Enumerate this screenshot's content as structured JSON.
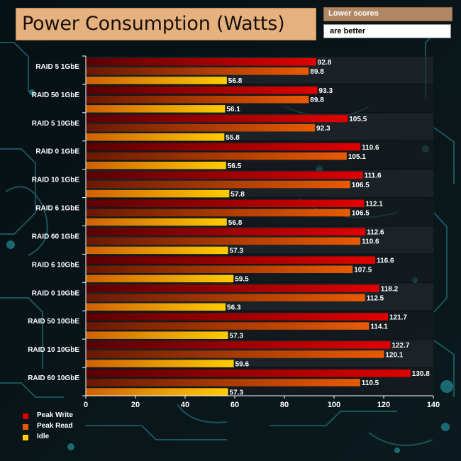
{
  "title": "Power Consumption (Watts)",
  "note_line1": "Lower scores",
  "note_line2": "are better",
  "colors": {
    "peak_write": "#e00000",
    "peak_read": "#e85a00",
    "idle": "#ffcc00"
  },
  "chart_data": {
    "type": "bar",
    "orientation": "horizontal",
    "title": "Power Consumption (Watts)",
    "xlabel": "",
    "ylabel": "",
    "xlim": [
      0,
      140
    ],
    "xticks": [
      0,
      20,
      40,
      60,
      80,
      100,
      120,
      140
    ],
    "grid": false,
    "legend_position": "bottom-left",
    "categories": [
      "RAID 5 1GbE",
      "RAID 50 1GbE",
      "RAID 5 10GbE",
      "RAID 0 1GbE",
      "RAID 10 1GbE",
      "RAID 6 1GbE",
      "RAID 60 1GbE",
      "RAID 6 10GbE",
      "RAID 0 10GbE",
      "RAID 50 10GbE",
      "RAID 10 10GbE",
      "RAID 60 10GbE"
    ],
    "series": [
      {
        "name": "Peak Write",
        "labels": [
          "92.8",
          "93.3",
          "105.5",
          "110.6",
          "111.6",
          "112.1",
          "112.6",
          "116.6",
          "118.2",
          "121.7",
          "122.7",
          "130.8"
        ],
        "values": [
          92.8,
          93.3,
          105.5,
          110.6,
          111.6,
          112.1,
          112.6,
          116.6,
          118.2,
          121.7,
          122.7,
          130.8
        ]
      },
      {
        "name": "Peak Read",
        "labels": [
          "89.8",
          "89.8",
          "92.3",
          "105.1",
          "106.5",
          "106.5",
          "110.6",
          "107.5",
          "112.5",
          "114.1",
          "120.1",
          "110.5"
        ],
        "values": [
          89.8,
          89.8,
          92.3,
          105.1,
          106.5,
          106.5,
          110.6,
          107.5,
          112.5,
          114.1,
          120.1,
          110.5
        ]
      },
      {
        "name": "Idle",
        "labels": [
          "56.8",
          "56.1",
          "55.8",
          "56.5",
          "57.8",
          "56.8",
          "57.3",
          "59.5",
          "56.3",
          "57.3",
          "59.6",
          "57.3"
        ],
        "values": [
          56.8,
          56.1,
          55.8,
          56.5,
          57.8,
          56.8,
          57.3,
          59.5,
          56.3,
          57.3,
          59.6,
          57.3
        ]
      }
    ]
  }
}
